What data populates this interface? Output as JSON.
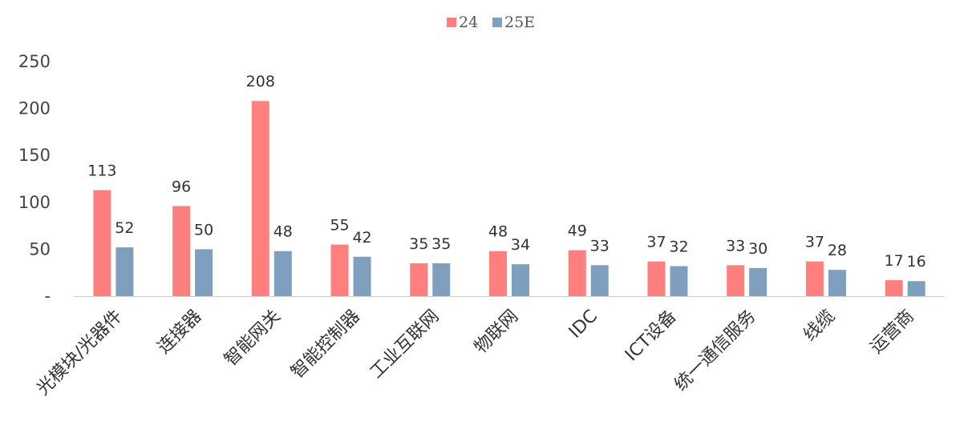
{
  "chart_data": {
    "type": "bar",
    "categories": [
      "光模块/光器件",
      "连接器",
      "智能网关",
      "智能控制器",
      "工业互联网",
      "物联网",
      "IDC",
      "ICT设备",
      "统一通信服务",
      "线缆",
      "运营商"
    ],
    "series": [
      {
        "name": "24",
        "color": "#FF7F7F",
        "values": [
          113,
          96,
          208,
          55,
          35,
          48,
          49,
          37,
          33,
          37,
          17
        ]
      },
      {
        "name": "25E",
        "color": "#7F9FBF",
        "values": [
          52,
          50,
          48,
          42,
          35,
          34,
          33,
          32,
          30,
          28,
          16
        ]
      }
    ],
    "ylim": [
      0,
      250
    ],
    "yticks": [
      0,
      50,
      100,
      150,
      200,
      250
    ],
    "ytick_labels": [
      "-",
      "50",
      "100",
      "150",
      "200",
      "250"
    ],
    "legend_position": "top-center",
    "grid": false,
    "title": "",
    "xlabel": "",
    "ylabel": ""
  }
}
